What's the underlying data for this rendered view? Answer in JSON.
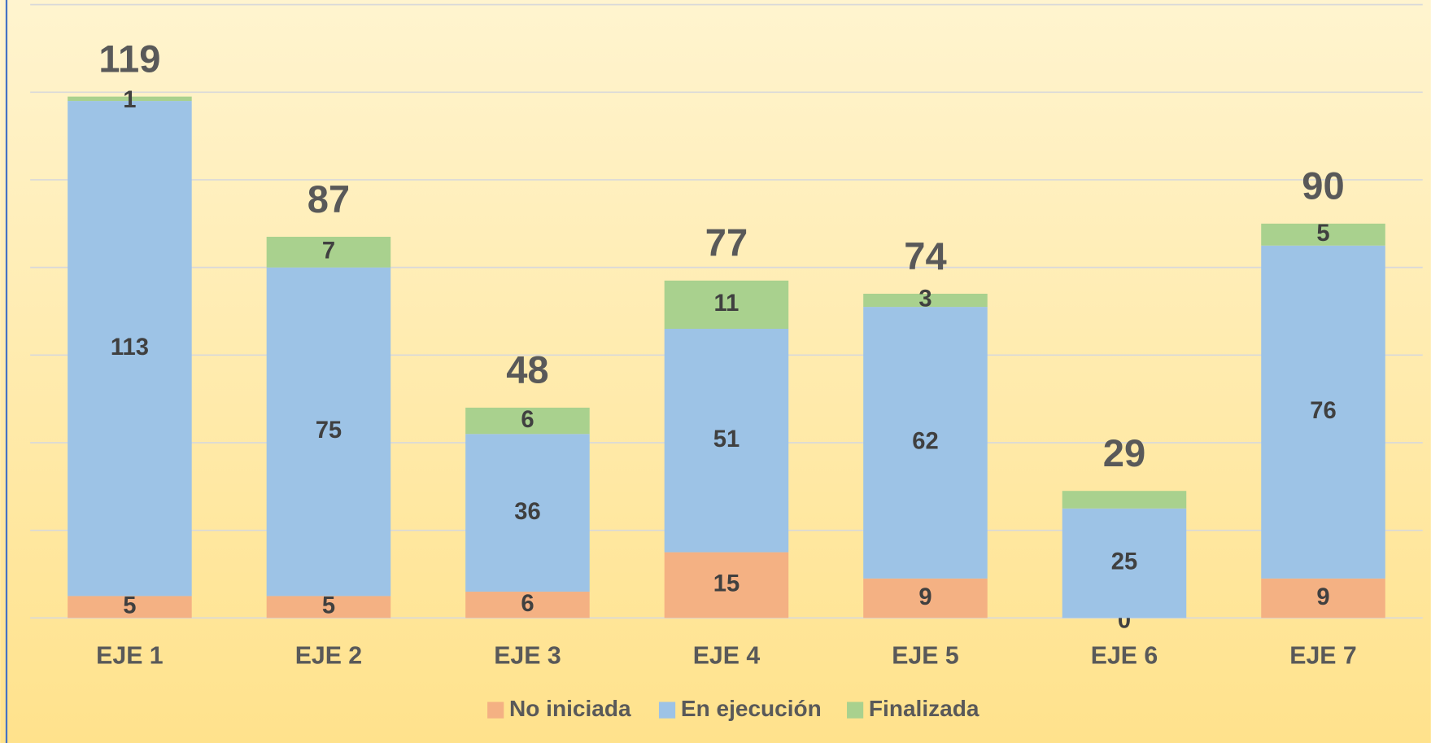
{
  "chart_data": {
    "type": "stacked_bar",
    "categories": [
      "EJE 1",
      "EJE 2",
      "EJE 3",
      "EJE 4",
      "EJE 5",
      "EJE 6",
      "EJE 7"
    ],
    "series": [
      {
        "name": "No iniciada",
        "color": "#f4b183",
        "values": [
          5,
          5,
          6,
          15,
          9,
          0,
          9
        ]
      },
      {
        "name": "En ejecución",
        "color": "#9dc3e6",
        "values": [
          113,
          75,
          36,
          51,
          62,
          25,
          76
        ]
      },
      {
        "name": "Finalizada",
        "color": "#a9d18e",
        "values": [
          1,
          7,
          6,
          11,
          3,
          4,
          5
        ],
        "value_labels": [
          "1",
          "7",
          "6",
          "11",
          "3",
          null,
          "5"
        ]
      }
    ],
    "totals": [
      119,
      87,
      48,
      77,
      74,
      29,
      90
    ],
    "ylim": [
      0,
      140
    ],
    "yticks": [
      0,
      20,
      40,
      60,
      80,
      100,
      120,
      140
    ],
    "grid": true,
    "legend": "bottom"
  }
}
